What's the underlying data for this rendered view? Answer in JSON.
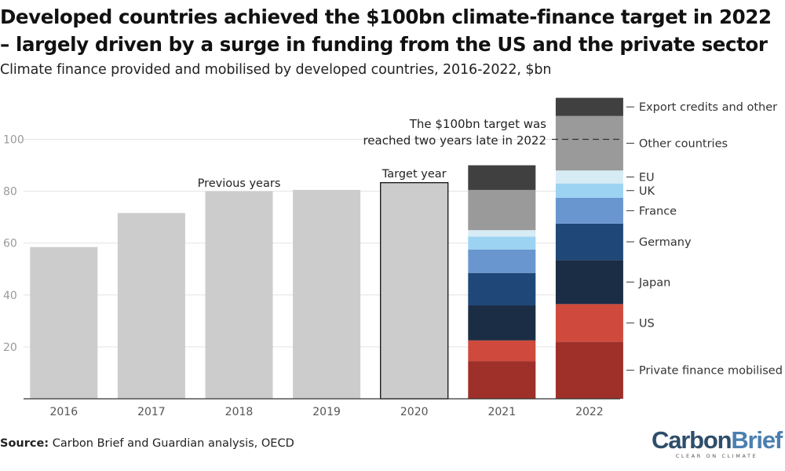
{
  "title": "Developed countries achieved the $100bn climate-finance target in 2022 – largely driven by a surge in funding from the US and the private sector",
  "subtitle": "Climate finance provided and mobilised by developed countries, 2016-2022, $bn",
  "source": {
    "label": "Source:",
    "text": "Carbon Brief and Guardian analysis, OECD"
  },
  "logo": {
    "text_a": "Carbon",
    "text_b": "Brief",
    "tagline": "CLEAR ON CLIMATE",
    "color_dark": "#2e4d6b",
    "color_light": "#4a7fb0"
  },
  "chart_data": {
    "type": "bar",
    "stacked": true,
    "title": "",
    "xlabel": "",
    "ylabel": "",
    "ylim": [
      0,
      120
    ],
    "yticks": [
      20,
      40,
      60,
      80,
      100
    ],
    "grid": true,
    "categories": [
      "2016",
      "2017",
      "2018",
      "2019",
      "2020",
      "2021",
      "2022"
    ],
    "total_bars": [
      {
        "category": "2016",
        "value": 58.5,
        "color": "#cccccc"
      },
      {
        "category": "2017",
        "value": 71.6,
        "color": "#cccccc"
      },
      {
        "category": "2018",
        "value": 80.0,
        "color": "#cccccc"
      },
      {
        "category": "2019",
        "value": 80.5,
        "color": "#cccccc"
      },
      {
        "category": "2020",
        "value": 83.3,
        "color": "#cccccc",
        "outlined": true
      }
    ],
    "series": [
      {
        "name": "Private finance mobilised",
        "color": "#9e3029",
        "values": {
          "2021": 14.5,
          "2022": 22.0
        }
      },
      {
        "name": "US",
        "color": "#cf4a3c",
        "values": {
          "2021": 8.0,
          "2022": 14.5
        }
      },
      {
        "name": "Japan",
        "color": "#1b2d45",
        "values": {
          "2021": 13.5,
          "2022": 17.0
        }
      },
      {
        "name": "Germany",
        "color": "#1f4878",
        "values": {
          "2021": 12.5,
          "2022": 14.0
        }
      },
      {
        "name": "France",
        "color": "#6a96cf",
        "values": {
          "2021": 9.0,
          "2022": 10.0
        }
      },
      {
        "name": "UK",
        "color": "#9cd3f3",
        "values": {
          "2021": 5.0,
          "2022": 5.5
        }
      },
      {
        "name": "EU",
        "color": "#d7ebf5",
        "values": {
          "2021": 2.5,
          "2022": 5.0
        }
      },
      {
        "name": "Other countries",
        "color": "#9a9a9a",
        "values": {
          "2021": 15.5,
          "2022": 21.0
        }
      },
      {
        "name": "Export credits and other",
        "color": "#404040",
        "values": {
          "2021": 9.5,
          "2022": 7.0
        }
      }
    ],
    "annotations": [
      {
        "text": "Previous years",
        "category": "2018"
      },
      {
        "text": "Target year",
        "category": "2020"
      },
      {
        "text": "The $100bn target was",
        "line": 1
      },
      {
        "text": "reached two years late in 2022",
        "line": 2
      }
    ],
    "target_line": {
      "value": 100
    },
    "legend_placement": "right"
  }
}
